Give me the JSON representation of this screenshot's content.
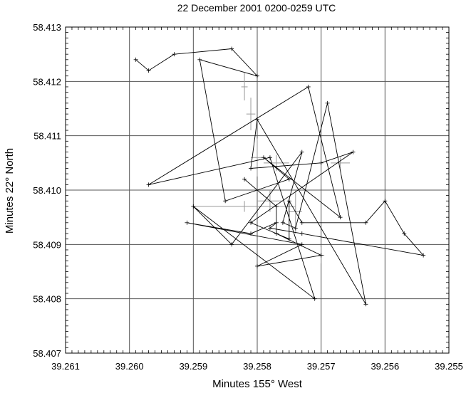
{
  "chart_data": {
    "type": "line",
    "title": "22 December 2001  0200-0259 UTC",
    "xlabel": "Minutes 155° West",
    "ylabel": "Minutes 22° North",
    "x_reversed": true,
    "xlim": [
      39.261,
      39.255
    ],
    "ylim": [
      58.407,
      58.413
    ],
    "x_tick_labels": [
      "39.261",
      "39.260",
      "39.259",
      "39.258",
      "39.257",
      "39.256",
      "39.255"
    ],
    "y_tick_labels": [
      "58.407",
      "58.408",
      "58.409",
      "58.410",
      "58.411",
      "58.412",
      "58.413"
    ],
    "grid": true,
    "track_color": "#000000",
    "error_bar_color": "#999999",
    "series": [
      {
        "points": [
          [
            39.2599,
            58.4124
          ],
          [
            39.2597,
            58.4122
          ],
          [
            39.2593,
            58.4125
          ],
          [
            39.2584,
            58.4126
          ],
          [
            39.258,
            58.4121
          ],
          [
            39.2589,
            58.4124
          ],
          [
            39.2585,
            58.4098
          ],
          [
            39.2575,
            58.4102
          ],
          [
            39.2579,
            58.4106
          ],
          [
            39.2567,
            58.4095
          ],
          [
            39.2572,
            58.4119
          ],
          [
            39.2597,
            58.4101
          ],
          [
            39.2578,
            58.4106
          ],
          [
            39.2571,
            58.408
          ],
          [
            39.259,
            58.4097
          ],
          [
            39.2584,
            58.409
          ],
          [
            39.2573,
            58.4107
          ],
          [
            39.2576,
            58.4094
          ],
          [
            39.2574,
            58.4093
          ],
          [
            39.2569,
            58.4116
          ],
          [
            39.2563,
            58.4079
          ],
          [
            39.258,
            58.4113
          ],
          [
            39.2581,
            58.4104
          ],
          [
            39.257,
            58.4105
          ],
          [
            39.2565,
            58.4107
          ],
          [
            39.2581,
            58.4094
          ],
          [
            39.2575,
            58.4091
          ],
          [
            39.2575,
            58.4098
          ],
          [
            39.2573,
            58.4094
          ],
          [
            39.2563,
            58.4094
          ],
          [
            39.256,
            58.4098
          ],
          [
            39.2557,
            58.4092
          ],
          [
            39.2554,
            58.4088
          ],
          [
            39.2573,
            58.4092
          ],
          [
            39.2578,
            58.4093
          ],
          [
            39.2577,
            58.4094
          ],
          [
            39.2581,
            58.4092
          ],
          [
            39.2591,
            58.4094
          ],
          [
            39.2573,
            58.409
          ],
          [
            39.258,
            58.4086
          ],
          [
            39.257,
            58.4088
          ],
          [
            39.2577,
            58.4092
          ],
          [
            39.2577,
            58.4097
          ],
          [
            39.2582,
            58.4102
          ]
        ],
        "error_bars": [
          [
            39.2582,
            58.4119,
            5e-05,
            0.00025
          ],
          [
            39.2581,
            58.4114,
            7e-05,
            0.0003
          ],
          [
            39.258,
            58.4106,
            0.0001,
            0.00035
          ],
          [
            39.2577,
            58.4105,
            0.0002,
            0.00015
          ],
          [
            39.2567,
            58.4105,
            0.00015,
            0.0001
          ],
          [
            39.2578,
            58.4098,
            0.0002,
            0.0002
          ],
          [
            39.2582,
            58.4097,
            0.0008,
            0.0001
          ],
          [
            39.2574,
            58.4096,
            0.0001,
            0.0004
          ],
          [
            39.257,
            58.4088,
            5e-05,
            0.00015
          ]
        ]
      }
    ]
  }
}
